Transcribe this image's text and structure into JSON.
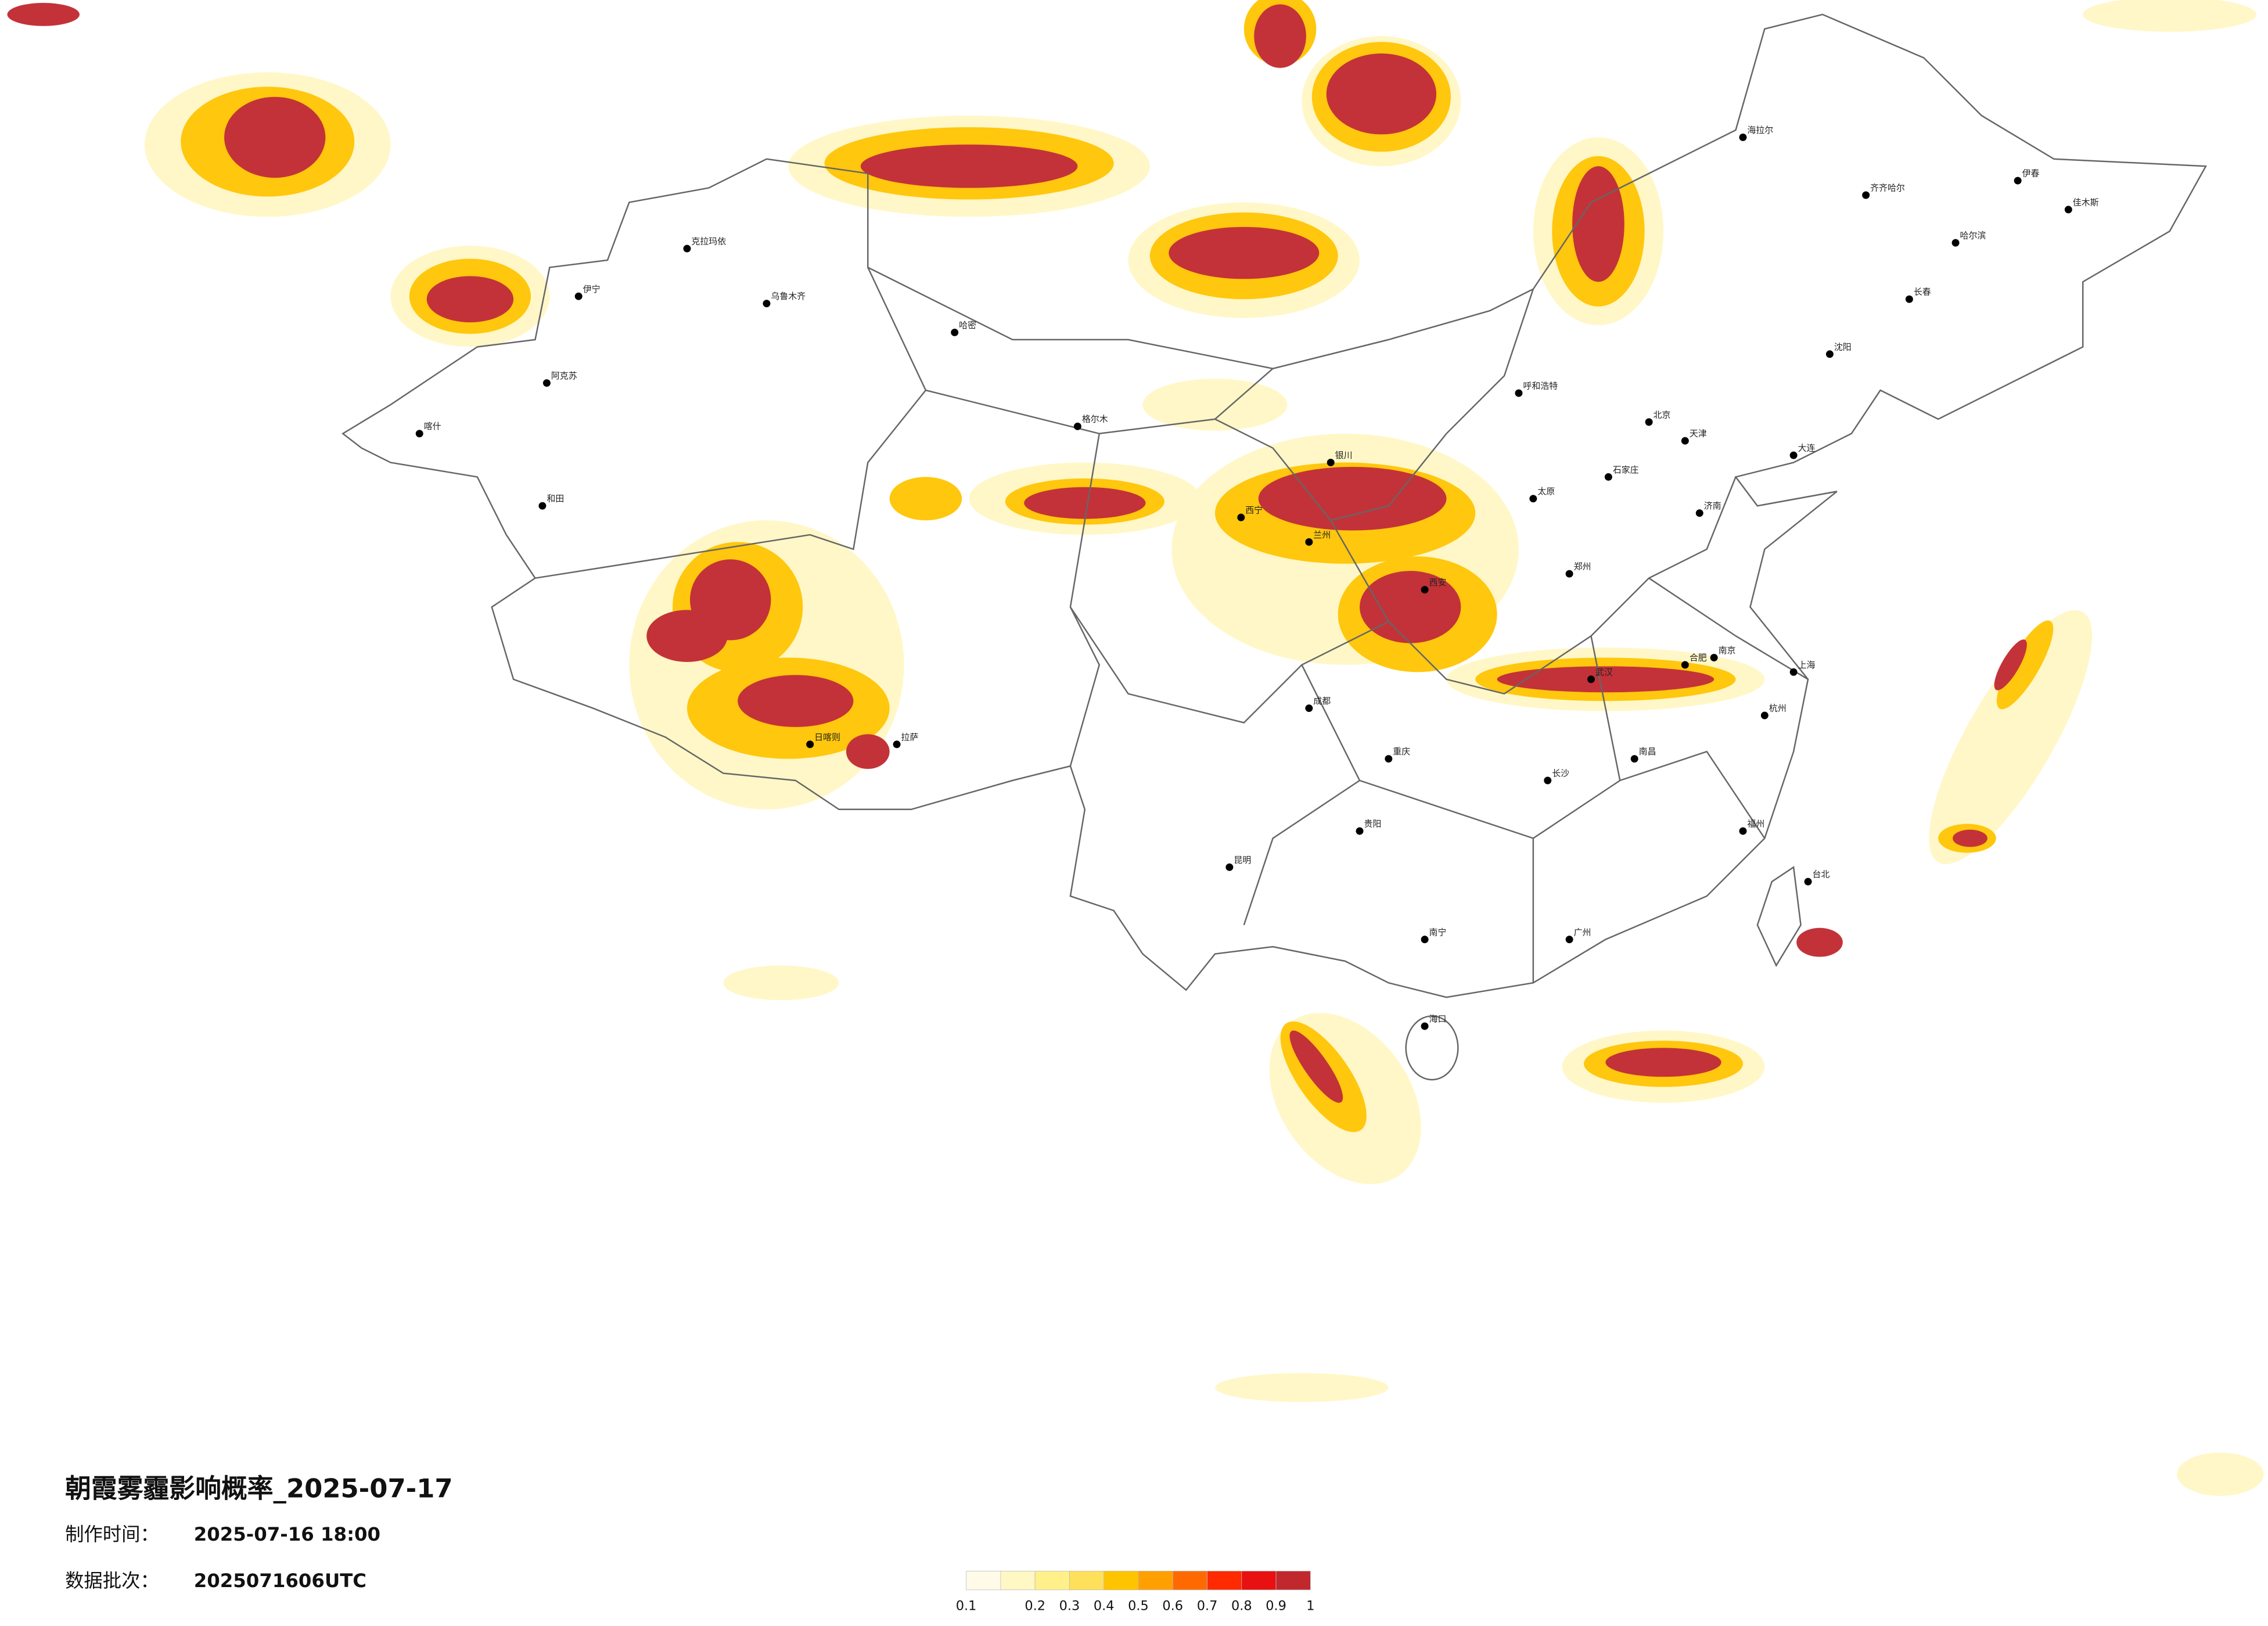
{
  "header": {
    "title": "朝霞雾霾影响概率_2025-07-17",
    "made_label": "制作时间：",
    "made_value": "2025-07-16 18:00",
    "batch_label": "数据批次：",
    "batch_value": "2025071606UTC"
  },
  "legend": {
    "colors": [
      "#fffbe8",
      "#fff7c4",
      "#fff08a",
      "#ffe05a",
      "#ffc400",
      "#ffa000",
      "#ff6a00",
      "#ff2a00",
      "#e81010",
      "#c0282e"
    ],
    "ticks": [
      0.1,
      0.2,
      0.3,
      0.4,
      0.5,
      0.6,
      0.7,
      0.8,
      0.9,
      1
    ]
  },
  "cities": [
    "哈尔滨",
    "长春",
    "沈阳",
    "北京",
    "天津",
    "石家庄",
    "太原",
    "呼和浩特",
    "济南",
    "郑州",
    "西安",
    "兰州",
    "西宁",
    "银川",
    "武汉",
    "长沙",
    "南昌",
    "合肥",
    "南京",
    "上海",
    "杭州",
    "福州",
    "广州",
    "南宁",
    "贵阳",
    "昆明",
    "成都",
    "重庆",
    "拉萨",
    "乌鲁木齐",
    "海口",
    "台北",
    "和田",
    "喀什",
    "伊宁",
    "克拉玛依",
    "哈密",
    "阿克苏",
    "齐齐哈尔",
    "海拉尔",
    "伊春",
    "佳木斯",
    "大连",
    "日喀则",
    "格尔木"
  ]
}
